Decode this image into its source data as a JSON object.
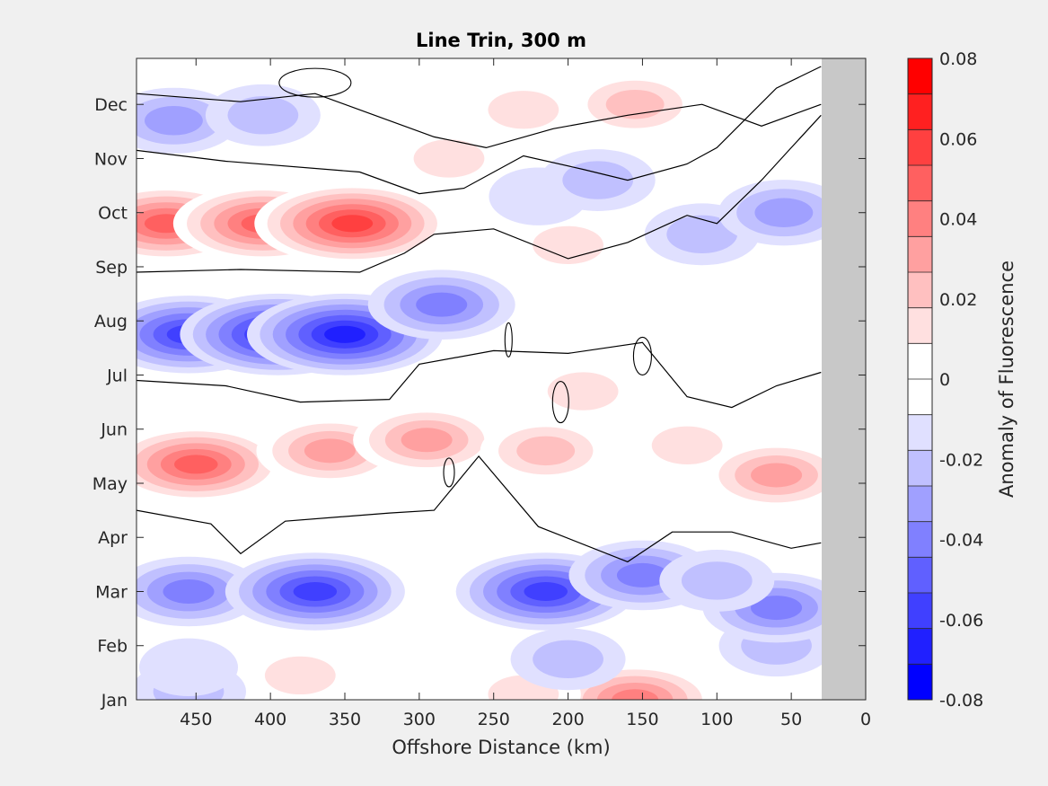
{
  "chart_data": {
    "type": "heatmap",
    "title": "Line Trin, 300 m",
    "xlabel": "Offshore Distance (km)",
    "ylabel": "",
    "xlim": [
      490,
      0
    ],
    "x_reversed": true,
    "x_ticks": [
      450,
      400,
      350,
      300,
      250,
      200,
      150,
      100,
      50,
      0
    ],
    "x_tick_labels": [
      "450",
      "400",
      "350",
      "300",
      "250",
      "200",
      "150",
      "100",
      "50",
      "0"
    ],
    "y_tick_labels": [
      "Jan",
      "Feb",
      "Mar",
      "Apr",
      "May",
      "Jun",
      "Jul",
      "Aug",
      "Sep",
      "Oct",
      "Nov",
      "Dec"
    ],
    "no_data_region_km": [
      0,
      30
    ],
    "colorbar": {
      "label": "Anomaly of Fluorescence",
      "range": [
        -0.08,
        0.08
      ],
      "tick_values": [
        0.08,
        0.06,
        0.04,
        0.02,
        0,
        -0.02,
        -0.04,
        -0.06,
        -0.08
      ],
      "tick_labels": [
        "0.08",
        "0.06",
        "0.04",
        "0.02",
        "0",
        "-0.02",
        "-0.04",
        "-0.06",
        "-0.08"
      ],
      "levels": [
        -0.08,
        -0.07,
        -0.06,
        -0.05,
        -0.04,
        -0.03,
        -0.02,
        -0.01,
        0,
        0.01,
        0.02,
        0.03,
        0.04,
        0.05,
        0.06,
        0.07,
        0.08
      ],
      "colors": [
        "#0000ff",
        "#2020ff",
        "#4040ff",
        "#6060ff",
        "#8080ff",
        "#a0a0ff",
        "#c0c0ff",
        "#e0e0ff",
        "#ffffff",
        "#ffffff",
        "#ffe0e0",
        "#ffc0c0",
        "#ffa0a0",
        "#ff8080",
        "#ff6060",
        "#ff4040",
        "#ff2020",
        "#ff0000"
      ]
    },
    "features": [
      {
        "month": 0.15,
        "km": 455,
        "value": -0.02
      },
      {
        "month": 0.6,
        "km": 455,
        "value": -0.01
      },
      {
        "month": 0.45,
        "km": 380,
        "value": 0.02
      },
      {
        "month": 0.0,
        "km": 155,
        "value": 0.05
      },
      {
        "month": 0.1,
        "km": 230,
        "value": 0.02
      },
      {
        "month": 0.75,
        "km": 200,
        "value": -0.02
      },
      {
        "month": 1.0,
        "km": 60,
        "value": -0.02
      },
      {
        "month": 2.0,
        "km": 455,
        "value": -0.04
      },
      {
        "month": 2.0,
        "km": 370,
        "value": -0.06
      },
      {
        "month": 2.0,
        "km": 215,
        "value": -0.06
      },
      {
        "month": 2.3,
        "km": 150,
        "value": -0.04
      },
      {
        "month": 1.7,
        "km": 60,
        "value": -0.04
      },
      {
        "month": 2.2,
        "km": 100,
        "value": -0.02
      },
      {
        "month": 4.35,
        "km": 450,
        "value": 0.06
      },
      {
        "month": 4.6,
        "km": 360,
        "value": 0.04
      },
      {
        "month": 4.8,
        "km": 295,
        "value": 0.04
      },
      {
        "month": 4.6,
        "km": 215,
        "value": 0.03
      },
      {
        "month": 4.7,
        "km": 120,
        "value": 0.02
      },
      {
        "month": 4.15,
        "km": 60,
        "value": 0.04
      },
      {
        "month": 5.7,
        "km": 190,
        "value": 0.02
      },
      {
        "month": 6.75,
        "km": 455,
        "value": -0.06
      },
      {
        "month": 6.75,
        "km": 395,
        "value": -0.07
      },
      {
        "month": 6.75,
        "km": 350,
        "value": -0.07
      },
      {
        "month": 7.3,
        "km": 285,
        "value": -0.04
      },
      {
        "month": 8.4,
        "km": 200,
        "value": 0.02
      },
      {
        "month": 8.8,
        "km": 470,
        "value": 0.06
      },
      {
        "month": 8.8,
        "km": 405,
        "value": 0.06
      },
      {
        "month": 8.8,
        "km": 345,
        "value": 0.07
      },
      {
        "month": 8.6,
        "km": 110,
        "value": -0.02
      },
      {
        "month": 9.0,
        "km": 55,
        "value": -0.03
      },
      {
        "month": 9.3,
        "km": 220,
        "value": -0.01
      },
      {
        "month": 9.6,
        "km": 180,
        "value": -0.02
      },
      {
        "month": 10.0,
        "km": 280,
        "value": 0.02
      },
      {
        "month": 10.1,
        "km": 100,
        "value": 0.01
      },
      {
        "month": 10.7,
        "km": 465,
        "value": -0.03
      },
      {
        "month": 10.8,
        "km": 405,
        "value": -0.02
      },
      {
        "month": 10.9,
        "km": 230,
        "value": 0.02
      },
      {
        "month": 11.0,
        "km": 155,
        "value": 0.03
      }
    ]
  }
}
